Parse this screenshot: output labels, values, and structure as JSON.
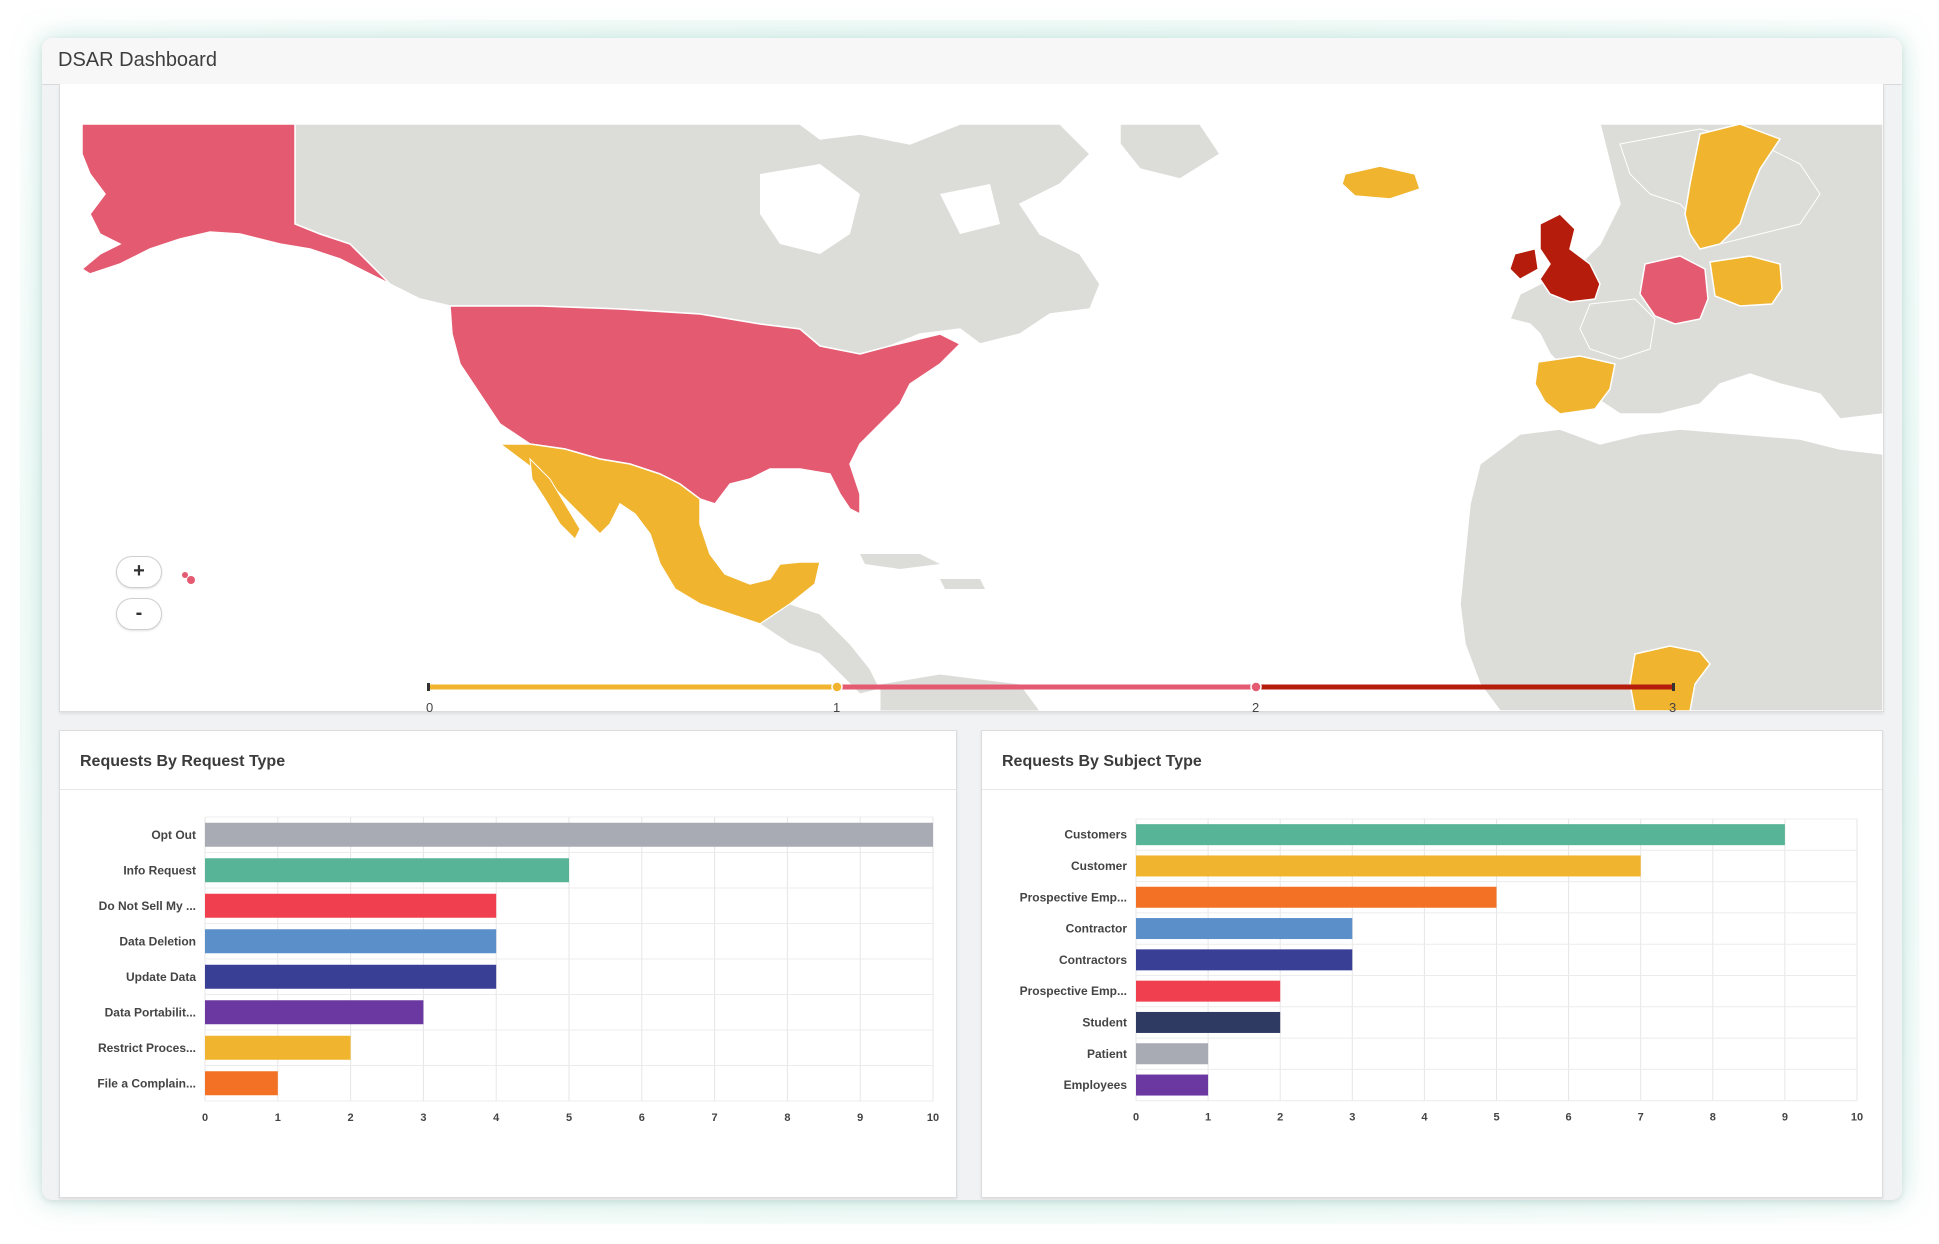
{
  "window": {
    "title": "DSAR Dashboard"
  },
  "map": {
    "zoom_in_label": "+",
    "zoom_out_label": "-",
    "legend_ticks": [
      "0",
      "1",
      "2",
      "3"
    ],
    "legend_colors": [
      "#f0b42f",
      "#e45a70",
      "#b51c0b"
    ],
    "country_colors": {
      "united_states": "#e45a70",
      "alaska": "#e45a70",
      "mexico": "#f0b42f",
      "iceland": "#f0b42f",
      "sweden": "#f0b42f",
      "united_kingdom": "#b51c0b",
      "germany": "#e45a70",
      "poland": "#f0b42f",
      "spain": "#f0b42f",
      "nigeria": "#f0b42f"
    }
  },
  "chart_data": [
    {
      "type": "bar",
      "orientation": "horizontal",
      "title": "Requests By Request Type",
      "categories": [
        "Opt Out",
        "Info Request",
        "Do Not Sell My ...",
        "Data Deletion",
        "Update Data",
        "Data Portabilit...",
        "Restrict Proces...",
        "File a Complain..."
      ],
      "values": [
        10,
        5,
        4,
        4,
        4,
        3,
        2,
        1
      ],
      "colors": [
        "#a8aab4",
        "#58b497",
        "#f0404f",
        "#5a8fca",
        "#3a3f96",
        "#6b38a2",
        "#f0b42f",
        "#f37124"
      ],
      "xlim": [
        0,
        10
      ],
      "xticks": [
        "0",
        "1",
        "2",
        "3",
        "4",
        "5",
        "6",
        "7",
        "8",
        "9",
        "10"
      ],
      "grid": true
    },
    {
      "type": "bar",
      "orientation": "horizontal",
      "title": "Requests By Subject Type",
      "categories": [
        "Customers",
        "Customer",
        "Prospective Emp...",
        "Contractor",
        "Contractors",
        "Prospective Emp...",
        "Student",
        "Patient",
        "Employees"
      ],
      "values": [
        9,
        7,
        5,
        3,
        3,
        2,
        2,
        1,
        1
      ],
      "colors": [
        "#58b497",
        "#f0b42f",
        "#f37124",
        "#5a8fca",
        "#3a3f96",
        "#f0404f",
        "#2f3a62",
        "#a8aab4",
        "#6b38a2"
      ],
      "xlim": [
        0,
        10
      ],
      "xticks": [
        "0",
        "1",
        "2",
        "3",
        "4",
        "5",
        "6",
        "7",
        "8",
        "9",
        "10"
      ],
      "grid": true
    }
  ]
}
